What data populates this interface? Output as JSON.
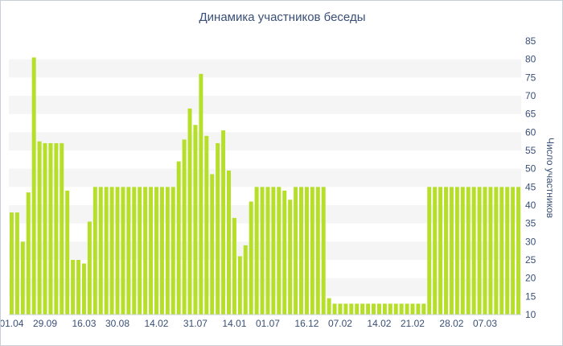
{
  "chart_data": {
    "type": "bar",
    "title": "Динамика участников беседы",
    "xlabel": "",
    "ylabel": "Число участников",
    "ylim": [
      10,
      85
    ],
    "yticks": [
      10,
      15,
      20,
      25,
      30,
      35,
      40,
      45,
      50,
      55,
      60,
      65,
      70,
      75,
      80,
      85
    ],
    "grid": "alternating horizontal bands",
    "bar_color": "#b6df2a",
    "band_color": "#f5f5f5",
    "text_color": "#3a4f78",
    "x_tick_labels": [
      {
        "index": 0,
        "label": "01.04"
      },
      {
        "index": 6,
        "label": "29.09"
      },
      {
        "index": 13,
        "label": "16.03"
      },
      {
        "index": 19,
        "label": "30.08"
      },
      {
        "index": 26,
        "label": "14.02"
      },
      {
        "index": 33,
        "label": "31.07"
      },
      {
        "index": 40,
        "label": "14.01"
      },
      {
        "index": 46,
        "label": "01.07"
      },
      {
        "index": 53,
        "label": "16.12"
      },
      {
        "index": 59,
        "label": "07.02"
      },
      {
        "index": 66,
        "label": "14.02"
      },
      {
        "index": 72,
        "label": "21.02"
      },
      {
        "index": 79,
        "label": "28.02"
      },
      {
        "index": 85,
        "label": "07.03"
      }
    ],
    "values": [
      38,
      38,
      30,
      43.5,
      80.5,
      57.5,
      57,
      57,
      57,
      57,
      44,
      25,
      25,
      24,
      35.5,
      45,
      45,
      45,
      45,
      45,
      45,
      45,
      45,
      45,
      45,
      45,
      45,
      45,
      45,
      45,
      52,
      58,
      66.5,
      62,
      76,
      59,
      48.5,
      57,
      60.5,
      49.5,
      36.5,
      26,
      29,
      41,
      45,
      45,
      45,
      45,
      45,
      44,
      41.5,
      45,
      45,
      45,
      45,
      45,
      45,
      14.5,
      13,
      13,
      13,
      13,
      13,
      13,
      13,
      13,
      13,
      13,
      13,
      13,
      13,
      13,
      13,
      13,
      13,
      45,
      45,
      45,
      45,
      45,
      45,
      45,
      45,
      45,
      45,
      45,
      45,
      45,
      45,
      45,
      45,
      45
    ]
  }
}
